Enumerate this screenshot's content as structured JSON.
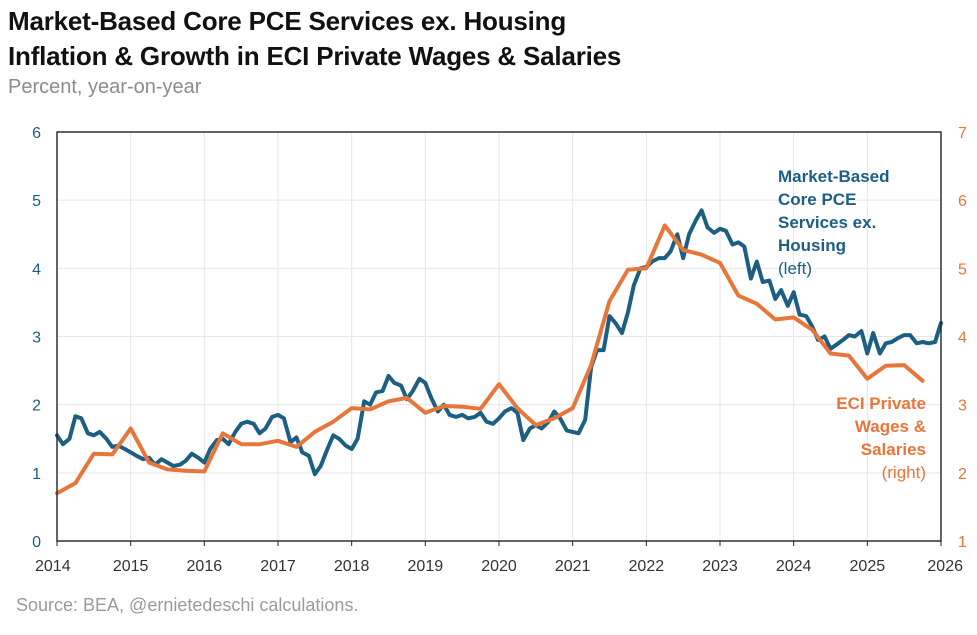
{
  "header": {
    "title_line1": "Market-Based Core PCE Services ex. Housing",
    "title_line2": "Inflation & Growth in ECI Private Wages & Salaries",
    "subtitle": "Percent, year-on-year"
  },
  "footer": {
    "source": "Source: BEA, @ernietedeschi calculations."
  },
  "colors": {
    "pce": "#1c5f82",
    "eci": "#e8753a",
    "frame": "#222222",
    "grid": "#e6e6e6"
  },
  "chart_data": {
    "type": "line",
    "title": "Market-Based Core PCE Services ex. Housing Inflation & Growth in ECI Private Wages & Salaries",
    "xlabel": "",
    "ylabel": "Percent, year-on-year",
    "x_ticks": [
      "2014",
      "2015",
      "2016",
      "2017",
      "2018",
      "2019",
      "2020",
      "2021",
      "2022",
      "2023",
      "2024",
      "2025",
      "2026"
    ],
    "xlim": [
      2014,
      2026.0
    ],
    "y_left": {
      "ticks": [
        "0",
        "1",
        "2",
        "3",
        "4",
        "5",
        "6"
      ],
      "ylim": [
        0,
        6
      ]
    },
    "y_right": {
      "ticks": [
        "1",
        "2",
        "3",
        "4",
        "5",
        "6",
        "7"
      ],
      "ylim": [
        1,
        7
      ]
    },
    "grid": true,
    "series": [
      {
        "name": "Market-Based Core PCE Services ex. Housing (left)",
        "axis": "left",
        "label_lines": [
          "Market-Based",
          "Core PCE",
          "Services ex.",
          "Housing"
        ],
        "label_note": "(left)",
        "points": [
          [
            2014.0,
            1.55
          ],
          [
            2014.08,
            1.42
          ],
          [
            2014.17,
            1.5
          ],
          [
            2014.25,
            1.83
          ],
          [
            2014.33,
            1.8
          ],
          [
            2014.42,
            1.58
          ],
          [
            2014.5,
            1.55
          ],
          [
            2014.58,
            1.6
          ],
          [
            2014.67,
            1.5
          ],
          [
            2014.75,
            1.38
          ],
          [
            2014.83,
            1.4
          ],
          [
            2014.92,
            1.35
          ],
          [
            2015.0,
            1.3
          ],
          [
            2015.08,
            1.25
          ],
          [
            2015.17,
            1.2
          ],
          [
            2015.25,
            1.22
          ],
          [
            2015.33,
            1.12
          ],
          [
            2015.42,
            1.2
          ],
          [
            2015.5,
            1.15
          ],
          [
            2015.58,
            1.1
          ],
          [
            2015.67,
            1.12
          ],
          [
            2015.75,
            1.18
          ],
          [
            2015.83,
            1.28
          ],
          [
            2015.92,
            1.22
          ],
          [
            2016.0,
            1.15
          ],
          [
            2016.08,
            1.35
          ],
          [
            2016.17,
            1.48
          ],
          [
            2016.25,
            1.5
          ],
          [
            2016.33,
            1.42
          ],
          [
            2016.42,
            1.6
          ],
          [
            2016.5,
            1.72
          ],
          [
            2016.58,
            1.75
          ],
          [
            2016.67,
            1.72
          ],
          [
            2016.75,
            1.58
          ],
          [
            2016.83,
            1.65
          ],
          [
            2016.92,
            1.82
          ],
          [
            2017.0,
            1.85
          ],
          [
            2017.08,
            1.8
          ],
          [
            2017.17,
            1.45
          ],
          [
            2017.25,
            1.52
          ],
          [
            2017.33,
            1.3
          ],
          [
            2017.42,
            1.25
          ],
          [
            2017.5,
            0.98
          ],
          [
            2017.58,
            1.1
          ],
          [
            2017.67,
            1.35
          ],
          [
            2017.75,
            1.55
          ],
          [
            2017.83,
            1.5
          ],
          [
            2017.92,
            1.4
          ],
          [
            2018.0,
            1.35
          ],
          [
            2018.08,
            1.5
          ],
          [
            2018.17,
            2.05
          ],
          [
            2018.25,
            2.0
          ],
          [
            2018.33,
            2.18
          ],
          [
            2018.42,
            2.2
          ],
          [
            2018.5,
            2.42
          ],
          [
            2018.58,
            2.32
          ],
          [
            2018.67,
            2.28
          ],
          [
            2018.75,
            2.08
          ],
          [
            2018.83,
            2.2
          ],
          [
            2018.92,
            2.38
          ],
          [
            2019.0,
            2.32
          ],
          [
            2019.08,
            2.1
          ],
          [
            2019.17,
            1.9
          ],
          [
            2019.25,
            2.0
          ],
          [
            2019.33,
            1.85
          ],
          [
            2019.42,
            1.82
          ],
          [
            2019.5,
            1.85
          ],
          [
            2019.58,
            1.8
          ],
          [
            2019.67,
            1.82
          ],
          [
            2019.75,
            1.88
          ],
          [
            2019.83,
            1.75
          ],
          [
            2019.92,
            1.72
          ],
          [
            2020.0,
            1.8
          ],
          [
            2020.08,
            1.9
          ],
          [
            2020.17,
            1.95
          ],
          [
            2020.25,
            1.88
          ],
          [
            2020.33,
            1.48
          ],
          [
            2020.42,
            1.65
          ],
          [
            2020.5,
            1.7
          ],
          [
            2020.58,
            1.65
          ],
          [
            2020.67,
            1.75
          ],
          [
            2020.75,
            1.9
          ],
          [
            2020.83,
            1.8
          ],
          [
            2020.92,
            1.62
          ],
          [
            2021.0,
            1.6
          ],
          [
            2021.08,
            1.58
          ],
          [
            2021.17,
            1.78
          ],
          [
            2021.25,
            2.55
          ],
          [
            2021.33,
            2.8
          ],
          [
            2021.42,
            2.8
          ],
          [
            2021.5,
            3.3
          ],
          [
            2021.58,
            3.2
          ],
          [
            2021.67,
            3.05
          ],
          [
            2021.75,
            3.35
          ],
          [
            2021.83,
            3.75
          ],
          [
            2021.92,
            4.0
          ],
          [
            2022.0,
            4.02
          ],
          [
            2022.08,
            4.1
          ],
          [
            2022.17,
            4.15
          ],
          [
            2022.25,
            4.15
          ],
          [
            2022.33,
            4.25
          ],
          [
            2022.42,
            4.5
          ],
          [
            2022.5,
            4.15
          ],
          [
            2022.58,
            4.5
          ],
          [
            2022.67,
            4.7
          ],
          [
            2022.75,
            4.85
          ],
          [
            2022.83,
            4.6
          ],
          [
            2022.92,
            4.52
          ],
          [
            2023.0,
            4.58
          ],
          [
            2023.08,
            4.55
          ],
          [
            2023.17,
            4.35
          ],
          [
            2023.25,
            4.38
          ],
          [
            2023.33,
            4.32
          ],
          [
            2023.42,
            3.85
          ],
          [
            2023.5,
            4.1
          ],
          [
            2023.58,
            3.8
          ],
          [
            2023.67,
            3.82
          ],
          [
            2023.75,
            3.55
          ],
          [
            2023.83,
            3.68
          ],
          [
            2023.92,
            3.45
          ],
          [
            2024.0,
            3.65
          ],
          [
            2024.08,
            3.32
          ],
          [
            2024.17,
            3.3
          ],
          [
            2024.25,
            3.15
          ],
          [
            2024.33,
            2.95
          ],
          [
            2024.42,
            3.0
          ],
          [
            2024.5,
            2.82
          ],
          [
            2024.58,
            2.88
          ],
          [
            2024.67,
            2.95
          ],
          [
            2024.75,
            3.02
          ],
          [
            2024.83,
            3.0
          ],
          [
            2024.92,
            3.08
          ],
          [
            2025.0,
            2.75
          ],
          [
            2025.08,
            3.05
          ],
          [
            2025.17,
            2.75
          ],
          [
            2025.25,
            2.9
          ],
          [
            2025.33,
            2.92
          ],
          [
            2025.42,
            2.98
          ],
          [
            2025.5,
            3.02
          ],
          [
            2025.58,
            3.02
          ],
          [
            2025.67,
            2.9
          ],
          [
            2025.75,
            2.92
          ],
          [
            2025.83,
            2.9
          ],
          [
            2025.92,
            2.92
          ],
          [
            2026.0,
            3.2
          ]
        ]
      },
      {
        "name": "ECI Private Wages & Salaries (right)",
        "axis": "right",
        "label_lines": [
          "ECI Private",
          "Wages &",
          "Salaries"
        ],
        "label_note": "(right)",
        "points": [
          [
            2014.0,
            1.7
          ],
          [
            2014.25,
            1.85
          ],
          [
            2014.5,
            2.28
          ],
          [
            2014.75,
            2.27
          ],
          [
            2015.0,
            2.65
          ],
          [
            2015.25,
            2.15
          ],
          [
            2015.5,
            2.05
          ],
          [
            2015.75,
            2.03
          ],
          [
            2016.0,
            2.02
          ],
          [
            2016.25,
            2.58
          ],
          [
            2016.5,
            2.42
          ],
          [
            2016.75,
            2.42
          ],
          [
            2017.0,
            2.47
          ],
          [
            2017.25,
            2.38
          ],
          [
            2017.5,
            2.6
          ],
          [
            2017.75,
            2.75
          ],
          [
            2018.0,
            2.95
          ],
          [
            2018.25,
            2.93
          ],
          [
            2018.5,
            3.05
          ],
          [
            2018.75,
            3.1
          ],
          [
            2019.0,
            2.88
          ],
          [
            2019.25,
            2.98
          ],
          [
            2019.5,
            2.97
          ],
          [
            2019.75,
            2.94
          ],
          [
            2020.0,
            3.3
          ],
          [
            2020.25,
            2.95
          ],
          [
            2020.5,
            2.7
          ],
          [
            2020.75,
            2.8
          ],
          [
            2021.0,
            2.95
          ],
          [
            2021.25,
            3.58
          ],
          [
            2021.5,
            4.52
          ],
          [
            2021.75,
            4.98
          ],
          [
            2022.0,
            5.0
          ],
          [
            2022.25,
            5.63
          ],
          [
            2022.5,
            5.27
          ],
          [
            2022.75,
            5.2
          ],
          [
            2023.0,
            5.08
          ],
          [
            2023.25,
            4.6
          ],
          [
            2023.5,
            4.48
          ],
          [
            2023.75,
            4.25
          ],
          [
            2024.0,
            4.28
          ],
          [
            2024.25,
            4.1
          ],
          [
            2024.5,
            3.75
          ],
          [
            2024.75,
            3.72
          ],
          [
            2025.0,
            3.38
          ],
          [
            2025.25,
            3.57
          ],
          [
            2025.5,
            3.58
          ],
          [
            2025.75,
            3.35
          ]
        ]
      }
    ]
  }
}
